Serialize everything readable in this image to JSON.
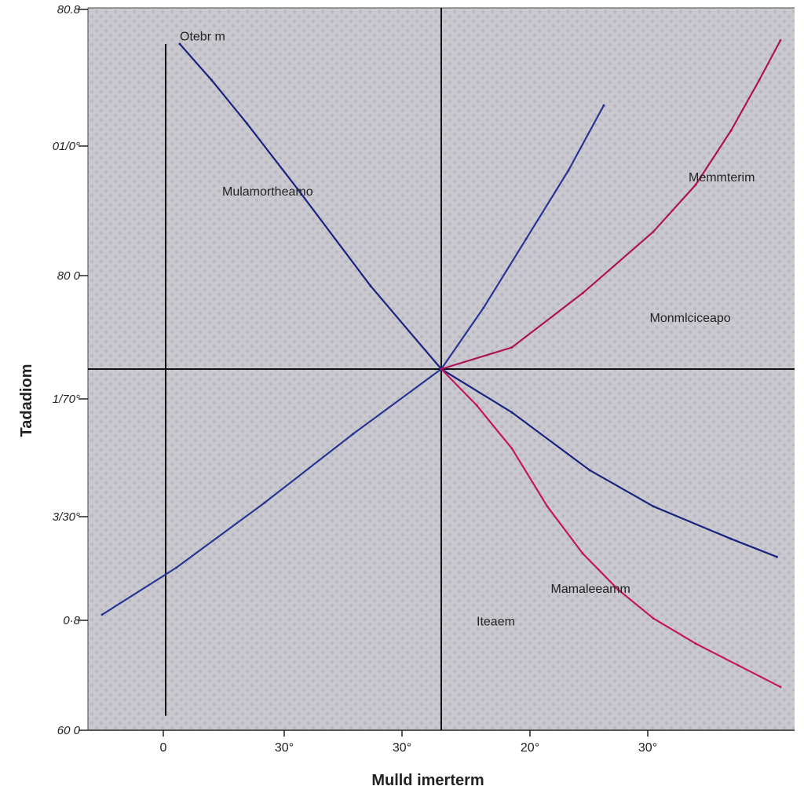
{
  "chart_data": {
    "type": "line",
    "title": "",
    "xlabel": "Mulld imerterm",
    "ylabel": "Tadadiom",
    "x_tick_labels": [
      "0",
      "30°",
      "30°",
      "20°",
      "30°"
    ],
    "y_tick_labels": [
      "80.8",
      "01/0°",
      "80 0",
      "1/70°",
      "3/30°",
      "0·8",
      "60 0"
    ],
    "grid": false,
    "legend": "none",
    "x_domain": [
      -1,
      1
    ],
    "y_domain": [
      -1,
      1
    ],
    "series": [
      {
        "color": "#1a237e",
        "values": [
          [
            -0.74,
            0.9
          ],
          [
            -0.65,
            0.8
          ],
          [
            -0.55,
            0.68
          ],
          [
            -0.4,
            0.49
          ],
          [
            -0.2,
            0.23
          ],
          [
            0,
            0
          ],
          [
            0.2,
            -0.12
          ],
          [
            0.42,
            -0.28
          ],
          [
            0.6,
            -0.38
          ],
          [
            0.82,
            -0.47
          ],
          [
            0.95,
            -0.52
          ]
        ]
      },
      {
        "color": "#c2185b",
        "values": [
          [
            0,
            0
          ],
          [
            0.1,
            -0.1
          ],
          [
            0.2,
            -0.22
          ],
          [
            0.3,
            -0.38
          ],
          [
            0.4,
            -0.51
          ],
          [
            0.5,
            -0.61
          ],
          [
            0.6,
            -0.69
          ],
          [
            0.72,
            -0.76
          ],
          [
            0.84,
            -0.82
          ],
          [
            0.96,
            -0.88
          ]
        ]
      },
      {
        "color": "#283593",
        "values": [
          [
            -0.96,
            -0.68
          ],
          [
            -0.75,
            -0.55
          ],
          [
            -0.5,
            -0.37
          ],
          [
            -0.25,
            -0.18
          ],
          [
            0,
            0
          ],
          [
            0.12,
            0.17
          ],
          [
            0.24,
            0.36
          ],
          [
            0.36,
            0.55
          ],
          [
            0.46,
            0.73
          ]
        ]
      },
      {
        "color": "#ad1457",
        "values": [
          [
            0,
            0
          ],
          [
            0.2,
            0.06
          ],
          [
            0.4,
            0.21
          ],
          [
            0.6,
            0.38
          ],
          [
            0.72,
            0.51
          ],
          [
            0.82,
            0.66
          ],
          [
            0.9,
            0.8
          ],
          [
            0.96,
            0.91
          ]
        ]
      }
    ],
    "annotations": [
      {
        "text": "Otebr m",
        "x": -0.74,
        "y": 0.91
      },
      {
        "text": "Mulamortheamo",
        "x": -0.62,
        "y": 0.48
      },
      {
        "text": "Memmterim",
        "x": 0.7,
        "y": 0.52
      },
      {
        "text": "Monmlciceapo",
        "x": 0.59,
        "y": 0.13
      },
      {
        "text": "Mamaleeamm",
        "x": 0.31,
        "y": -0.62
      },
      {
        "text": "Iteaem",
        "x": 0.1,
        "y": -0.71
      }
    ]
  }
}
